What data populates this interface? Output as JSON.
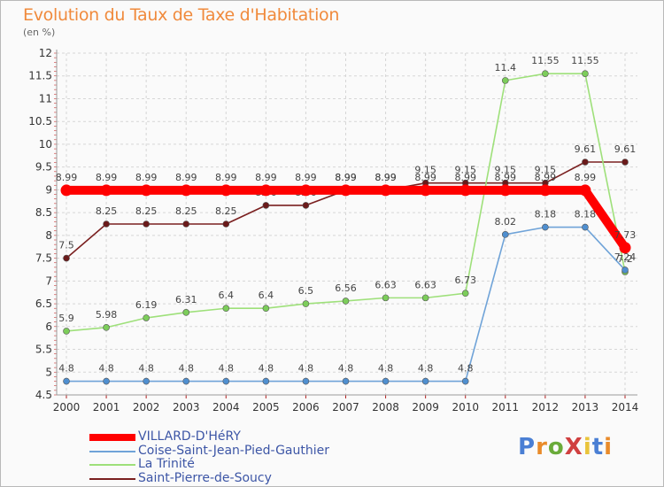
{
  "title": "Evolution du Taux de Taxe d'Habitation",
  "subtitle": "(en %)",
  "logo": {
    "text": "ProXiti",
    "colors": [
      "#4a7fd4",
      "#e98b2a",
      "#6aab3a",
      "#d04040",
      "#e9c43a",
      "#4a7fd4",
      "#e98b2a"
    ]
  },
  "chart_data": {
    "type": "line",
    "x": [
      "2000",
      "2001",
      "2002",
      "2003",
      "2004",
      "2005",
      "2006",
      "2007",
      "2008",
      "2009",
      "2010",
      "2011",
      "2012",
      "2013",
      "2014"
    ],
    "ylim": [
      4.5,
      12
    ],
    "yticks": [
      "4.5",
      "5",
      "5.5",
      "6",
      "6.5",
      "7",
      "7.5",
      "8",
      "8.5",
      "9",
      "9.5",
      "10",
      "10.5",
      "11",
      "11.5",
      "12"
    ],
    "grid": true,
    "legend_position": "bottom-left",
    "series": [
      {
        "name": "Saint-Pierre-de-Soucy",
        "color": "#7a1f1f",
        "point_color": "#6b1a1a",
        "values": [
          7.5,
          8.25,
          8.25,
          8.25,
          8.25,
          8.66,
          8.66,
          8.99,
          8.99,
          9.15,
          9.15,
          9.15,
          9.15,
          9.61,
          9.61
        ],
        "labels": [
          "7.5",
          "8.25",
          "8.25",
          "8.25",
          "8.25",
          "8.66",
          "8.66",
          "8.99",
          "8.99",
          "9.15",
          "9.15",
          "9.15",
          "9.15",
          "9.61",
          "9.61"
        ]
      },
      {
        "name": "La Trinité",
        "color": "#9ee07a",
        "point_color": "#7ccd5a",
        "values": [
          5.9,
          5.98,
          6.19,
          6.31,
          6.4,
          6.4,
          6.5,
          6.56,
          6.63,
          6.63,
          6.73,
          11.4,
          11.55,
          11.55,
          7.2
        ],
        "labels": [
          "5.9",
          "5.98",
          "6.19",
          "6.31",
          "6.4",
          "6.4",
          "6.5",
          "6.56",
          "6.63",
          "6.63",
          "6.73",
          "11.4",
          "11.55",
          "11.55",
          "7.2"
        ]
      },
      {
        "name": "Coise-Saint-Jean-Pied-Gauthier",
        "color": "#6fa3d8",
        "point_color": "#4f8fd0",
        "values": [
          4.8,
          4.8,
          4.8,
          4.8,
          4.8,
          4.8,
          4.8,
          4.8,
          4.8,
          4.8,
          4.8,
          8.02,
          8.18,
          8.18,
          7.24
        ],
        "labels": [
          "4.8",
          "4.8",
          "4.8",
          "4.8",
          "4.8",
          "4.8",
          "4.8",
          "4.8",
          "4.8",
          "4.8",
          "4.8",
          "8.02",
          "8.18",
          "8.18",
          "7.24"
        ]
      },
      {
        "name": "VILLARD-D'HéRY",
        "color": "#ff0000",
        "point_color": "#ff0000",
        "values": [
          8.99,
          8.99,
          8.99,
          8.99,
          8.99,
          8.99,
          8.99,
          8.99,
          8.99,
          8.99,
          8.99,
          8.99,
          8.99,
          8.99,
          7.73
        ],
        "labels": [
          "8.99",
          "8.99",
          "8.99",
          "8.99",
          "8.99",
          "8.99",
          "8.99",
          "8.99",
          "8.99",
          "8.99",
          "8.99",
          "8.99",
          "8.99",
          "8.99",
          "7.73"
        ]
      }
    ]
  },
  "legend": [
    {
      "label": "VILLARD-D'HéRY",
      "color": "#ff0000"
    },
    {
      "label": "Coise-Saint-Jean-Pied-Gauthier",
      "color": "#6fa3d8"
    },
    {
      "label": "La Trinité",
      "color": "#9ee07a"
    },
    {
      "label": "Saint-Pierre-de-Soucy",
      "color": "#7a1f1f"
    }
  ]
}
